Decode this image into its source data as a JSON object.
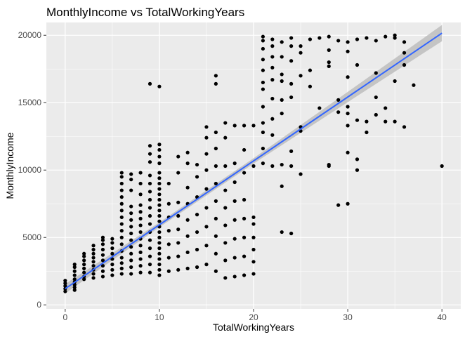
{
  "chart_data": {
    "type": "scatter",
    "title": "MonthlyIncome vs TotalWorkingYears",
    "xlabel": "TotalWorkingYears",
    "ylabel": "MonthlyIncome",
    "xlim": [
      -2,
      42
    ],
    "ylim": [
      -300,
      20950
    ],
    "x_ticks": [
      0,
      10,
      20,
      30,
      40
    ],
    "y_ticks": [
      0,
      5000,
      10000,
      15000,
      20000
    ],
    "x_tick_labels": [
      "0",
      "10",
      "20",
      "30",
      "40"
    ],
    "y_tick_labels": [
      "0",
      "5000",
      "10000",
      "15000",
      "20000"
    ],
    "grid": true,
    "colors": {
      "panel_background": "#ebebeb",
      "grid_major": "#ffffff",
      "point": "#000000",
      "fit_line": "#3366ff",
      "confidence_band": "#bdbdbd"
    },
    "fit": {
      "type": "linear",
      "intercept": 1200,
      "slope": 474,
      "x_range": [
        0,
        40
      ],
      "band": [
        [
          0,
          350
        ],
        [
          10,
          180
        ],
        [
          20,
          200
        ],
        [
          30,
          380
        ],
        [
          40,
          600
        ]
      ]
    },
    "points": [
      [
        0,
        1000
      ],
      [
        0,
        1200
      ],
      [
        0,
        1400
      ],
      [
        0,
        1600
      ],
      [
        0,
        1800
      ],
      [
        1,
        1100
      ],
      [
        1,
        1300
      ],
      [
        1,
        1500
      ],
      [
        1,
        1700
      ],
      [
        1,
        1900
      ],
      [
        1,
        2200
      ],
      [
        1,
        2500
      ],
      [
        1,
        2800
      ],
      [
        1,
        3000
      ],
      [
        2,
        1900
      ],
      [
        2,
        2100
      ],
      [
        2,
        2400
      ],
      [
        2,
        2700
      ],
      [
        2,
        3000
      ],
      [
        2,
        3300
      ],
      [
        2,
        3600
      ],
      [
        2,
        3800
      ],
      [
        3,
        2000
      ],
      [
        3,
        2300
      ],
      [
        3,
        2600
      ],
      [
        3,
        2900
      ],
      [
        3,
        3200
      ],
      [
        3,
        3500
      ],
      [
        3,
        3800
      ],
      [
        3,
        4100
      ],
      [
        3,
        4400
      ],
      [
        4,
        2100
      ],
      [
        4,
        2500
      ],
      [
        4,
        2900
      ],
      [
        4,
        3300
      ],
      [
        4,
        3700
      ],
      [
        4,
        4100
      ],
      [
        4,
        4500
      ],
      [
        4,
        4800
      ],
      [
        4,
        5000
      ],
      [
        5,
        2200
      ],
      [
        5,
        2600
      ],
      [
        5,
        3000
      ],
      [
        5,
        3400
      ],
      [
        5,
        3800
      ],
      [
        5,
        4200
      ],
      [
        5,
        4600
      ],
      [
        5,
        4900
      ],
      [
        6,
        2300
      ],
      [
        6,
        2700
      ],
      [
        6,
        3100
      ],
      [
        6,
        3500
      ],
      [
        6,
        4000
      ],
      [
        6,
        4500
      ],
      [
        6,
        5000
      ],
      [
        6,
        5500
      ],
      [
        6,
        6000
      ],
      [
        6,
        6500
      ],
      [
        6,
        7000
      ],
      [
        6,
        7500
      ],
      [
        6,
        8000
      ],
      [
        6,
        8500
      ],
      [
        6,
        9000
      ],
      [
        6,
        9500
      ],
      [
        6,
        9800
      ],
      [
        7,
        2300
      ],
      [
        7,
        2800
      ],
      [
        7,
        3300
      ],
      [
        7,
        3800
      ],
      [
        7,
        4300
      ],
      [
        7,
        4800
      ],
      [
        7,
        5300
      ],
      [
        7,
        5800
      ],
      [
        7,
        6300
      ],
      [
        7,
        6800
      ],
      [
        7,
        7300
      ],
      [
        7,
        8500
      ],
      [
        7,
        9300
      ],
      [
        7,
        9700
      ],
      [
        8,
        2400
      ],
      [
        8,
        2900
      ],
      [
        8,
        3400
      ],
      [
        8,
        3900
      ],
      [
        8,
        4400
      ],
      [
        8,
        4900
      ],
      [
        8,
        5400
      ],
      [
        8,
        5900
      ],
      [
        8,
        6400
      ],
      [
        8,
        6900
      ],
      [
        8,
        7400
      ],
      [
        8,
        8200
      ],
      [
        8,
        9000
      ],
      [
        8,
        9800
      ],
      [
        9,
        2400
      ],
      [
        9,
        3000
      ],
      [
        9,
        3600
      ],
      [
        9,
        4200
      ],
      [
        9,
        4800
      ],
      [
        9,
        5400
      ],
      [
        9,
        6000
      ],
      [
        9,
        6600
      ],
      [
        9,
        7200
      ],
      [
        9,
        7800
      ],
      [
        9,
        8400
      ],
      [
        9,
        9000
      ],
      [
        9,
        9600
      ],
      [
        9,
        10600
      ],
      [
        9,
        11200
      ],
      [
        9,
        11800
      ],
      [
        9,
        16400
      ],
      [
        10,
        2200
      ],
      [
        10,
        2600
      ],
      [
        10,
        3000
      ],
      [
        10,
        3400
      ],
      [
        10,
        3800
      ],
      [
        10,
        4200
      ],
      [
        10,
        4600
      ],
      [
        10,
        5000
      ],
      [
        10,
        5400
      ],
      [
        10,
        5800
      ],
      [
        10,
        6200
      ],
      [
        10,
        6600
      ],
      [
        10,
        7000
      ],
      [
        10,
        7400
      ],
      [
        10,
        7800
      ],
      [
        10,
        8200
      ],
      [
        10,
        8600
      ],
      [
        10,
        9000
      ],
      [
        10,
        9400
      ],
      [
        10,
        9800
      ],
      [
        10,
        10500
      ],
      [
        10,
        11000
      ],
      [
        10,
        11500
      ],
      [
        10,
        11900
      ],
      [
        10,
        16200
      ],
      [
        11,
        2500
      ],
      [
        11,
        3500
      ],
      [
        11,
        4500
      ],
      [
        11,
        5500
      ],
      [
        11,
        6500
      ],
      [
        11,
        7500
      ],
      [
        11,
        9000
      ],
      [
        12,
        2600
      ],
      [
        12,
        3600
      ],
      [
        12,
        4600
      ],
      [
        12,
        5600
      ],
      [
        12,
        6600
      ],
      [
        12,
        7600
      ],
      [
        12,
        9800
      ],
      [
        12,
        11000
      ],
      [
        13,
        2700
      ],
      [
        13,
        3900
      ],
      [
        13,
        5100
      ],
      [
        13,
        6300
      ],
      [
        13,
        7500
      ],
      [
        13,
        8700
      ],
      [
        13,
        10500
      ],
      [
        13,
        11300
      ],
      [
        14,
        2800
      ],
      [
        14,
        4100
      ],
      [
        14,
        5400
      ],
      [
        14,
        6700
      ],
      [
        14,
        8000
      ],
      [
        14,
        9500
      ],
      [
        14,
        10400
      ],
      [
        15,
        3000
      ],
      [
        15,
        4400
      ],
      [
        15,
        5800
      ],
      [
        15,
        7200
      ],
      [
        15,
        8600
      ],
      [
        15,
        10000
      ],
      [
        15,
        11200
      ],
      [
        15,
        12400
      ],
      [
        15,
        13200
      ],
      [
        16,
        2500
      ],
      [
        16,
        3800
      ],
      [
        16,
        5100
      ],
      [
        16,
        6400
      ],
      [
        16,
        7700
      ],
      [
        16,
        9000
      ],
      [
        16,
        10300
      ],
      [
        16,
        11600
      ],
      [
        16,
        12800
      ],
      [
        16,
        16400
      ],
      [
        16,
        17000
      ],
      [
        17,
        2000
      ],
      [
        17,
        3300
      ],
      [
        17,
        4600
      ],
      [
        17,
        5900
      ],
      [
        17,
        7200
      ],
      [
        17,
        8500
      ],
      [
        17,
        10300
      ],
      [
        17,
        12400
      ],
      [
        17,
        13500
      ],
      [
        18,
        2100
      ],
      [
        18,
        3500
      ],
      [
        18,
        4900
      ],
      [
        18,
        6300
      ],
      [
        18,
        7700
      ],
      [
        18,
        9100
      ],
      [
        18,
        10500
      ],
      [
        18,
        13300
      ],
      [
        19,
        2200
      ],
      [
        19,
        3600
      ],
      [
        19,
        5000
      ],
      [
        19,
        6400
      ],
      [
        19,
        7800
      ],
      [
        19,
        9800
      ],
      [
        19,
        11500
      ],
      [
        19,
        13300
      ],
      [
        20,
        2300
      ],
      [
        20,
        3200
      ],
      [
        20,
        4100
      ],
      [
        20,
        5000
      ],
      [
        20,
        6000
      ],
      [
        20,
        6500
      ],
      [
        20,
        10300
      ],
      [
        20,
        13300
      ],
      [
        21,
        10500
      ],
      [
        21,
        11600
      ],
      [
        21,
        12800
      ],
      [
        21,
        13500
      ],
      [
        21,
        14700
      ],
      [
        21,
        16000
      ],
      [
        21,
        16500
      ],
      [
        21,
        17400
      ],
      [
        21,
        18200
      ],
      [
        21,
        19000
      ],
      [
        21,
        19600
      ],
      [
        21,
        19900
      ],
      [
        22,
        10300
      ],
      [
        22,
        12600
      ],
      [
        22,
        13800
      ],
      [
        22,
        15300
      ],
      [
        22,
        16700
      ],
      [
        22,
        17600
      ],
      [
        22,
        18400
      ],
      [
        22,
        19200
      ],
      [
        22,
        19700
      ],
      [
        23,
        8800
      ],
      [
        23,
        10400
      ],
      [
        23,
        14200
      ],
      [
        23,
        15200
      ],
      [
        23,
        16600
      ],
      [
        23,
        17100
      ],
      [
        23,
        18400
      ],
      [
        23,
        19500
      ],
      [
        23,
        5400
      ],
      [
        24,
        10300
      ],
      [
        24,
        11400
      ],
      [
        24,
        15400
      ],
      [
        24,
        16400
      ],
      [
        24,
        18100
      ],
      [
        24,
        19200
      ],
      [
        24,
        19800
      ],
      [
        24,
        5300
      ],
      [
        25,
        9700
      ],
      [
        25,
        12900
      ],
      [
        25,
        13200
      ],
      [
        25,
        17000
      ],
      [
        25,
        18700
      ],
      [
        25,
        19200
      ],
      [
        26,
        16200
      ],
      [
        26,
        17400
      ],
      [
        26,
        19700
      ],
      [
        27,
        14600
      ],
      [
        27,
        19800
      ],
      [
        28,
        10300
      ],
      [
        28,
        10400
      ],
      [
        28,
        17700
      ],
      [
        28,
        18000
      ],
      [
        28,
        18900
      ],
      [
        28,
        19900
      ],
      [
        29,
        7400
      ],
      [
        29,
        14300
      ],
      [
        29,
        15200
      ],
      [
        29,
        19600
      ],
      [
        30,
        7500
      ],
      [
        30,
        11300
      ],
      [
        30,
        13300
      ],
      [
        30,
        14200
      ],
      [
        30,
        14700
      ],
      [
        30,
        16900
      ],
      [
        30,
        18800
      ],
      [
        30,
        19500
      ],
      [
        31,
        10000
      ],
      [
        31,
        10800
      ],
      [
        31,
        13700
      ],
      [
        31,
        17800
      ],
      [
        31,
        19700
      ],
      [
        32,
        12800
      ],
      [
        32,
        13600
      ],
      [
        32,
        19800
      ],
      [
        33,
        14100
      ],
      [
        33,
        15400
      ],
      [
        33,
        17200
      ],
      [
        33,
        19600
      ],
      [
        34,
        13600
      ],
      [
        34,
        14600
      ],
      [
        34,
        19900
      ],
      [
        35,
        13600
      ],
      [
        35,
        16600
      ],
      [
        35,
        19800
      ],
      [
        35,
        20000
      ],
      [
        36,
        13200
      ],
      [
        36,
        17800
      ],
      [
        36,
        18700
      ],
      [
        36,
        19500
      ],
      [
        37,
        16300
      ],
      [
        40,
        10300
      ]
    ]
  }
}
